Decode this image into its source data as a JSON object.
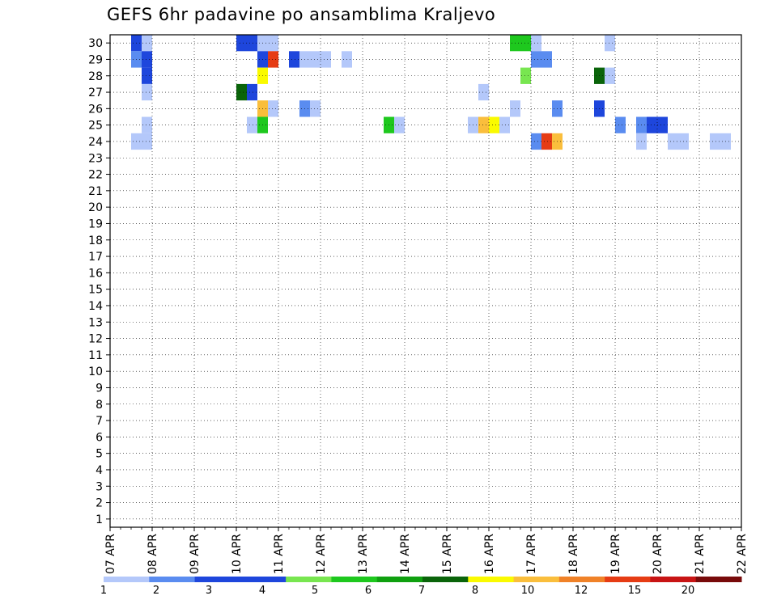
{
  "chart_data": {
    "type": "heatmap",
    "title": "GEFS 6hr padavine po ansamblima Kraljevo",
    "x_tick_labels": [
      "07 APR",
      "08 APR",
      "09 APR",
      "10 APR",
      "11 APR",
      "12 APR",
      "13 APR",
      "14 APR",
      "15 APR",
      "16 APR",
      "17 APR",
      "18 APR",
      "19 APR",
      "20 APR",
      "21 APR",
      "22 APR"
    ],
    "y_tick_labels": [
      "1",
      "2",
      "3",
      "4",
      "5",
      "6",
      "7",
      "8",
      "9",
      "10",
      "11",
      "12",
      "13",
      "14",
      "15",
      "16",
      "17",
      "18",
      "19",
      "20",
      "21",
      "22",
      "23",
      "24",
      "25",
      "26",
      "27",
      "28",
      "29",
      "30"
    ],
    "x_range": [
      "07 APR",
      "22 APR"
    ],
    "y_range": [
      0,
      30
    ],
    "time_step_hours": 6,
    "grid": "dotted",
    "legend_position": "bottom",
    "colorbar": {
      "labels": [
        "1",
        "2",
        "3",
        "4",
        "5",
        "6",
        "7",
        "8",
        "10",
        "12",
        "15",
        "20"
      ],
      "colors": [
        "#b4c8fa",
        "#5a8cf0",
        "#1e46dc",
        "#1e46dc",
        "#78e650",
        "#1ec81e",
        "#0fa00f",
        "#0a640a",
        "#fafa00",
        "#fabe3c",
        "#f08228",
        "#e63c14",
        "#c81414",
        "#780a0a"
      ]
    },
    "cells": [
      {
        "x": "07 APR 12Z",
        "y": 30,
        "v": 3
      },
      {
        "x": "07 APR 18Z",
        "y": 30,
        "v": 1
      },
      {
        "x": "10 APR 00Z",
        "y": 30,
        "v": 3
      },
      {
        "x": "10 APR 06Z",
        "y": 30,
        "v": 3
      },
      {
        "x": "10 APR 12Z",
        "y": 30,
        "v": 1
      },
      {
        "x": "10 APR 18Z",
        "y": 30,
        "v": 1
      },
      {
        "x": "16 APR 12Z",
        "y": 30,
        "v": 6
      },
      {
        "x": "16 APR 18Z",
        "y": 30,
        "v": 6
      },
      {
        "x": "17 APR 00Z",
        "y": 30,
        "v": 1
      },
      {
        "x": "18 APR 18Z",
        "y": 30,
        "v": 1
      },
      {
        "x": "07 APR 12Z",
        "y": 29,
        "v": 2
      },
      {
        "x": "07 APR 18Z",
        "y": 29,
        "v": 3
      },
      {
        "x": "10 APR 12Z",
        "y": 29,
        "v": 3
      },
      {
        "x": "10 APR 18Z",
        "y": 29,
        "v": 15
      },
      {
        "x": "11 APR 06Z",
        "y": 29,
        "v": 3
      },
      {
        "x": "11 APR 12Z",
        "y": 29,
        "v": 1
      },
      {
        "x": "11 APR 18Z",
        "y": 29,
        "v": 1
      },
      {
        "x": "12 APR 00Z",
        "y": 29,
        "v": 1
      },
      {
        "x": "12 APR 12Z",
        "y": 29,
        "v": 1
      },
      {
        "x": "17 APR 00Z",
        "y": 29,
        "v": 2
      },
      {
        "x": "17 APR 06Z",
        "y": 29,
        "v": 2
      },
      {
        "x": "07 APR 18Z",
        "y": 28,
        "v": 3
      },
      {
        "x": "10 APR 12Z",
        "y": 28,
        "v": 8
      },
      {
        "x": "16 APR 18Z",
        "y": 28,
        "v": 5
      },
      {
        "x": "18 APR 12Z",
        "y": 28,
        "v": 7
      },
      {
        "x": "18 APR 18Z",
        "y": 28,
        "v": 1
      },
      {
        "x": "07 APR 18Z",
        "y": 27,
        "v": 1
      },
      {
        "x": "10 APR 00Z",
        "y": 27,
        "v": 7
      },
      {
        "x": "10 APR 06Z",
        "y": 27,
        "v": 3
      },
      {
        "x": "15 APR 18Z",
        "y": 27,
        "v": 1
      },
      {
        "x": "10 APR 12Z",
        "y": 26,
        "v": 10
      },
      {
        "x": "10 APR 18Z",
        "y": 26,
        "v": 1
      },
      {
        "x": "11 APR 12Z",
        "y": 26,
        "v": 2
      },
      {
        "x": "11 APR 18Z",
        "y": 26,
        "v": 1
      },
      {
        "x": "16 APR 12Z",
        "y": 26,
        "v": 1
      },
      {
        "x": "17 APR 12Z",
        "y": 26,
        "v": 2
      },
      {
        "x": "18 APR 12Z",
        "y": 26,
        "v": 3
      },
      {
        "x": "07 APR 18Z",
        "y": 25,
        "v": 1
      },
      {
        "x": "10 APR 06Z",
        "y": 25,
        "v": 1
      },
      {
        "x": "10 APR 12Z",
        "y": 25,
        "v": 6
      },
      {
        "x": "13 APR 12Z",
        "y": 25,
        "v": 6
      },
      {
        "x": "13 APR 18Z",
        "y": 25,
        "v": 1
      },
      {
        "x": "15 APR 12Z",
        "y": 25,
        "v": 1
      },
      {
        "x": "15 APR 18Z",
        "y": 25,
        "v": 10
      },
      {
        "x": "16 APR 00Z",
        "y": 25,
        "v": 8
      },
      {
        "x": "16 APR 06Z",
        "y": 25,
        "v": 1
      },
      {
        "x": "19 APR 00Z",
        "y": 25,
        "v": 2
      },
      {
        "x": "19 APR 12Z",
        "y": 25,
        "v": 2
      },
      {
        "x": "19 APR 18Z",
        "y": 25,
        "v": 3
      },
      {
        "x": "20 APR 00Z",
        "y": 25,
        "v": 3
      },
      {
        "x": "07 APR 12Z",
        "y": 24,
        "v": 1
      },
      {
        "x": "07 APR 18Z",
        "y": 24,
        "v": 1
      },
      {
        "x": "17 APR 00Z",
        "y": 24,
        "v": 2
      },
      {
        "x": "17 APR 06Z",
        "y": 24,
        "v": 15
      },
      {
        "x": "17 APR 12Z",
        "y": 24,
        "v": 10
      },
      {
        "x": "19 APR 12Z",
        "y": 24,
        "v": 1
      },
      {
        "x": "20 APR 06Z",
        "y": 24,
        "v": 1
      },
      {
        "x": "20 APR 12Z",
        "y": 24,
        "v": 1
      },
      {
        "x": "21 APR 06Z",
        "y": 24,
        "v": 1
      },
      {
        "x": "21 APR 12Z",
        "y": 24,
        "v": 1
      }
    ]
  }
}
